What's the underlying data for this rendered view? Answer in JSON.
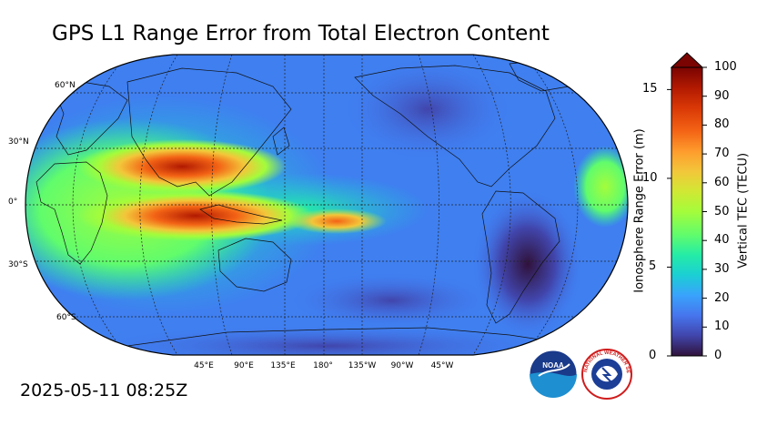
{
  "title": "GPS L1 Range Error from Total Electron Content",
  "timestamp": "2025-05-11 08:25Z",
  "map": {
    "projection": "Robinson",
    "center_longitude": "180°",
    "lat_labels": [
      "60°N",
      "30°N",
      "0°",
      "30°S",
      "60°S"
    ],
    "lon_labels": [
      "45°E",
      "90°E",
      "135°E",
      "180°",
      "135°W",
      "90°W",
      "45°W"
    ]
  },
  "colorbar": {
    "left_axis_label": "Ionosphere Range Error (m)",
    "left_ticks": [
      "0",
      "5",
      "10",
      "15"
    ],
    "right_axis_label": "Vertical TEC (TECU)",
    "right_ticks": [
      "0",
      "10",
      "20",
      "30",
      "40",
      "50",
      "60",
      "70",
      "80",
      "90",
      "100"
    ],
    "extend": "max",
    "colors": [
      "#30123b",
      "#4145ab",
      "#4675ed",
      "#39a2fc",
      "#1bcfd4",
      "#24eca6",
      "#61fc6c",
      "#a4fc3b",
      "#d1e834",
      "#f3c63a",
      "#fe9b2d",
      "#f36315",
      "#d93806",
      "#b11901",
      "#7a0402"
    ]
  },
  "logos": {
    "noaa_text": "NOAA",
    "nws_text": "NATIONAL WEATHER SERVICE"
  }
}
